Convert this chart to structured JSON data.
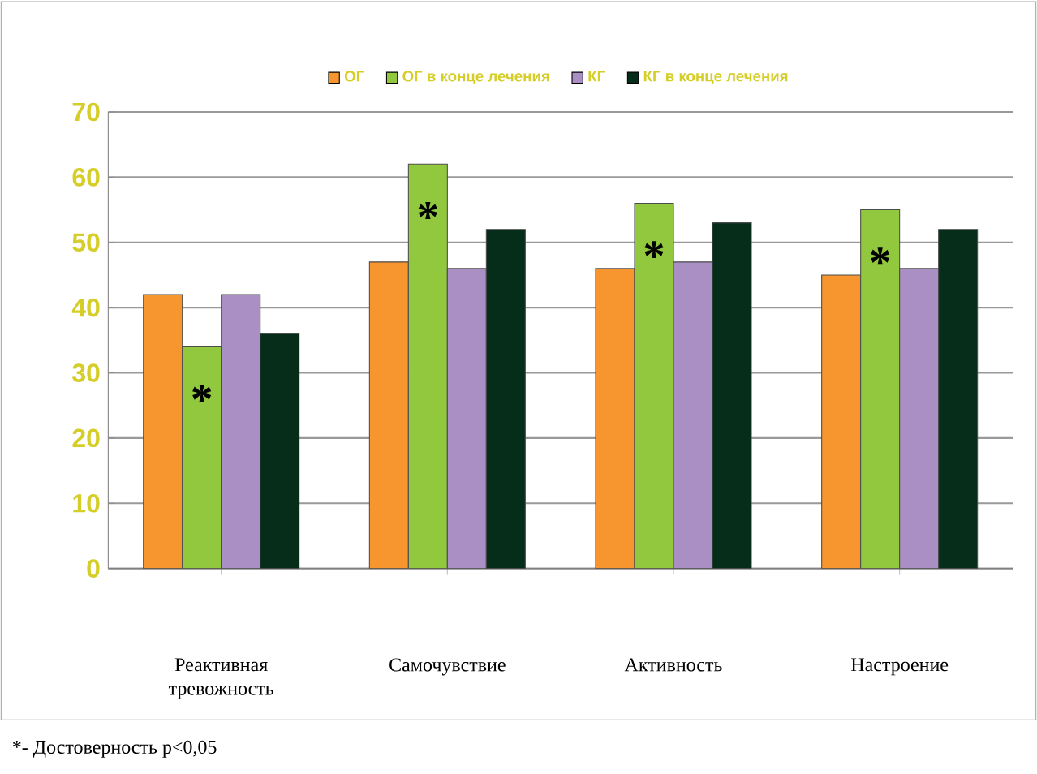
{
  "chart_data": {
    "type": "bar",
    "categories": [
      "Реактивная тревожность",
      "Самочувствие",
      "Активность",
      "Настроение"
    ],
    "series": [
      {
        "name": "ОГ",
        "color": "#f7962e",
        "values": [
          42,
          47,
          46,
          45
        ]
      },
      {
        "name": "ОГ в конце лечения",
        "color": "#92c83e",
        "values": [
          34,
          62,
          56,
          55
        ]
      },
      {
        "name": "КГ",
        "color": "#a98fc4",
        "values": [
          42,
          46,
          47,
          46
        ]
      },
      {
        "name": "КГ в конце лечения",
        "color": "#052d1a",
        "values": [
          36,
          52,
          53,
          52
        ]
      }
    ],
    "ylim": [
      0,
      70
    ],
    "yticks": [
      0,
      10,
      20,
      30,
      40,
      50,
      60,
      70
    ],
    "grid": "y",
    "legend": "top",
    "annotations": [
      "*",
      "*",
      "*",
      "*",
      "*- Достоверность р<0,05"
    ]
  }
}
